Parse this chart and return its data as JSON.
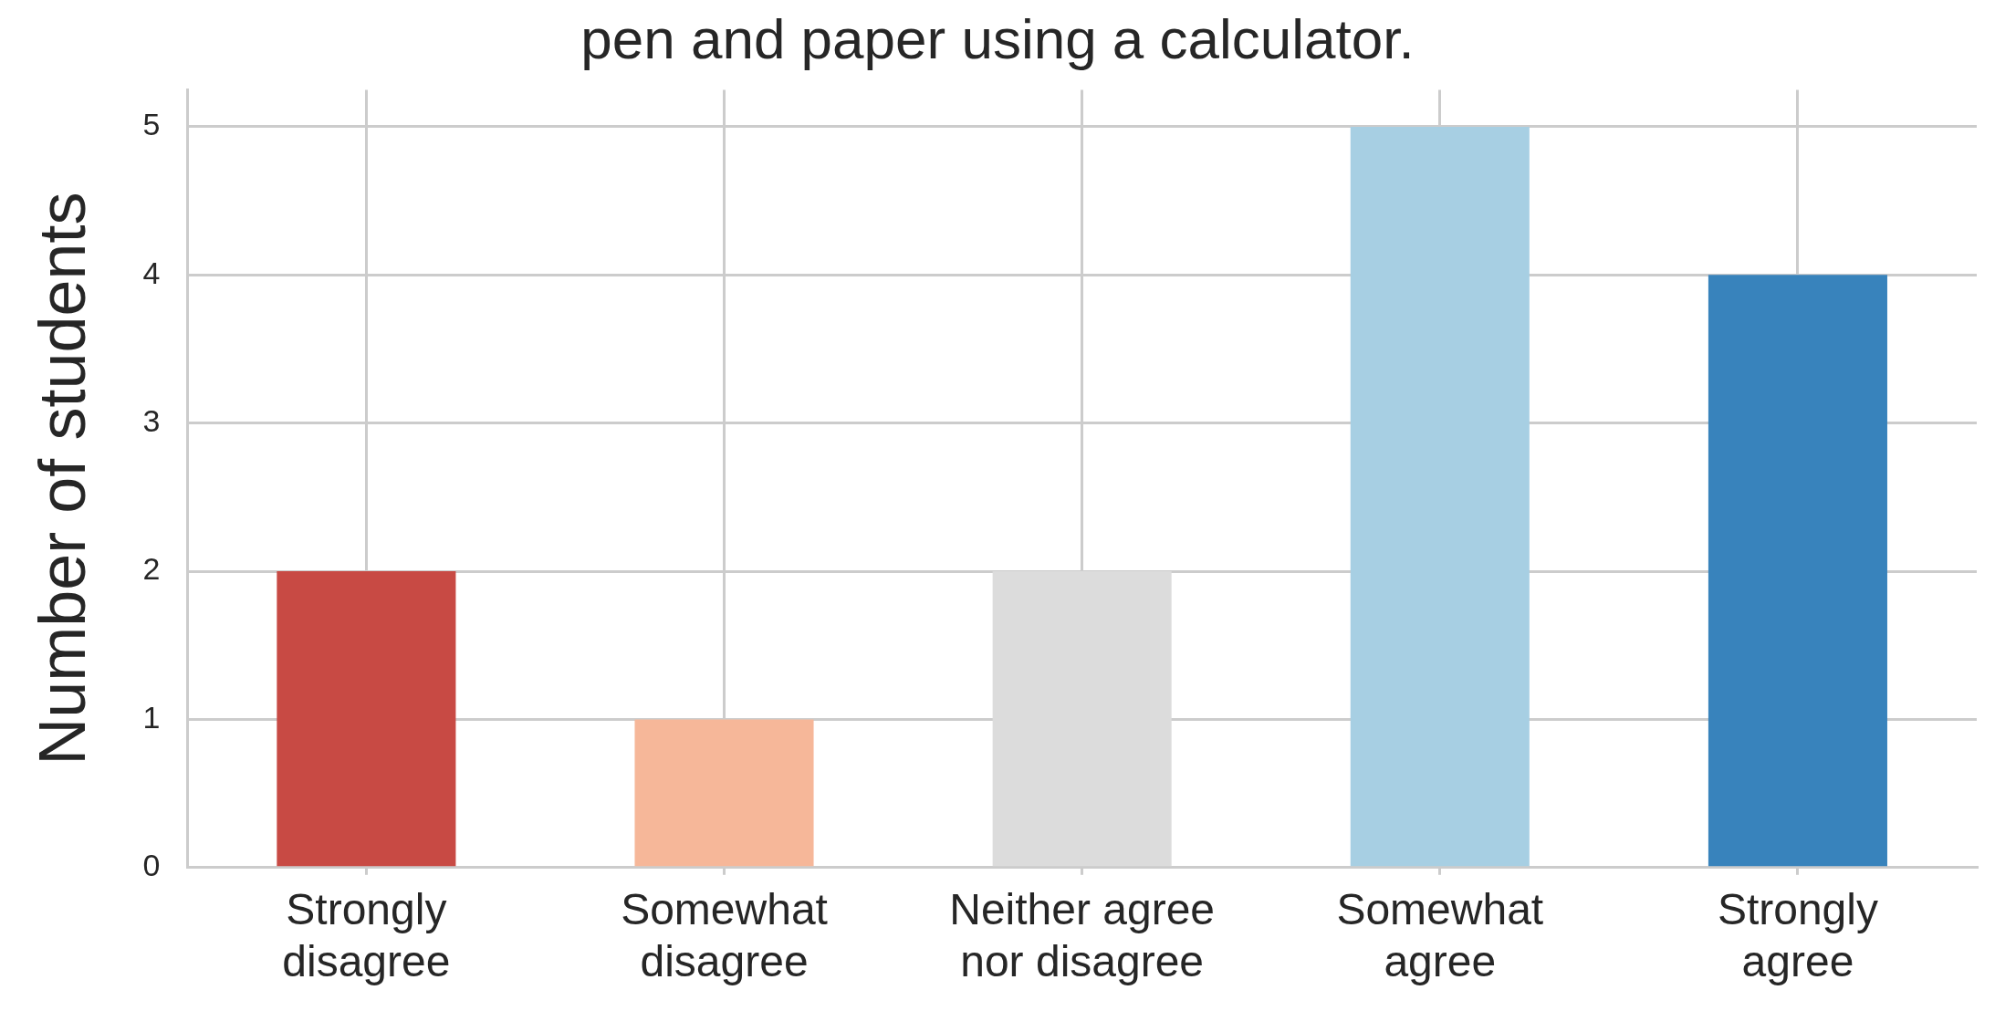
{
  "chart_data": {
    "type": "bar",
    "title": "pen and paper using a calculator.",
    "ylabel": "Number of students",
    "categories": [
      "Strongly\ndisagree",
      "Somewhat\ndisagree",
      "Neither agree\nnor disagree",
      "Somewhat\nagree",
      "Strongly\nagree"
    ],
    "values": [
      2,
      1,
      2,
      5,
      4
    ],
    "colors": [
      "#c84a44",
      "#f6b799",
      "#dcdcdc",
      "#a7cfe3",
      "#3883bc"
    ],
    "ylim": [
      0,
      5.25
    ],
    "yticks": [
      0,
      1,
      2,
      3,
      4,
      5
    ],
    "grid": true,
    "legend": false
  }
}
